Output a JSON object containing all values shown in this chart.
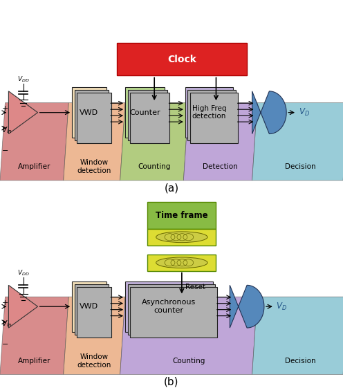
{
  "bg_color": "#ffffff",
  "seg_a": [
    {
      "label": "Amplifier",
      "color": "#cc6666"
    },
    {
      "label": "Window\ndetection",
      "color": "#e8a878"
    },
    {
      "label": "Counting",
      "color": "#99bb66"
    },
    {
      "label": "Detection",
      "color": "#aa88cc"
    },
    {
      "label": "Decision",
      "color": "#77bbcc"
    }
  ],
  "seg_b": [
    {
      "label": "Amplifier",
      "color": "#cc6666"
    },
    {
      "label": "Window\ndetection",
      "color": "#e8a878"
    },
    {
      "label": "Counting",
      "color": "#aa88cc"
    },
    {
      "label": "Decision",
      "color": "#77bbcc"
    }
  ],
  "clock_color": "#dd2222",
  "timeframe_color": "#99bb44",
  "timeframe_bg": "#dddd44",
  "vwd_color": "#f0ddb8",
  "counter_color": "#b8d890",
  "hf_color": "#c0b0d8",
  "async_color": "#c0b0d8",
  "cyl_color": "#5588bb"
}
